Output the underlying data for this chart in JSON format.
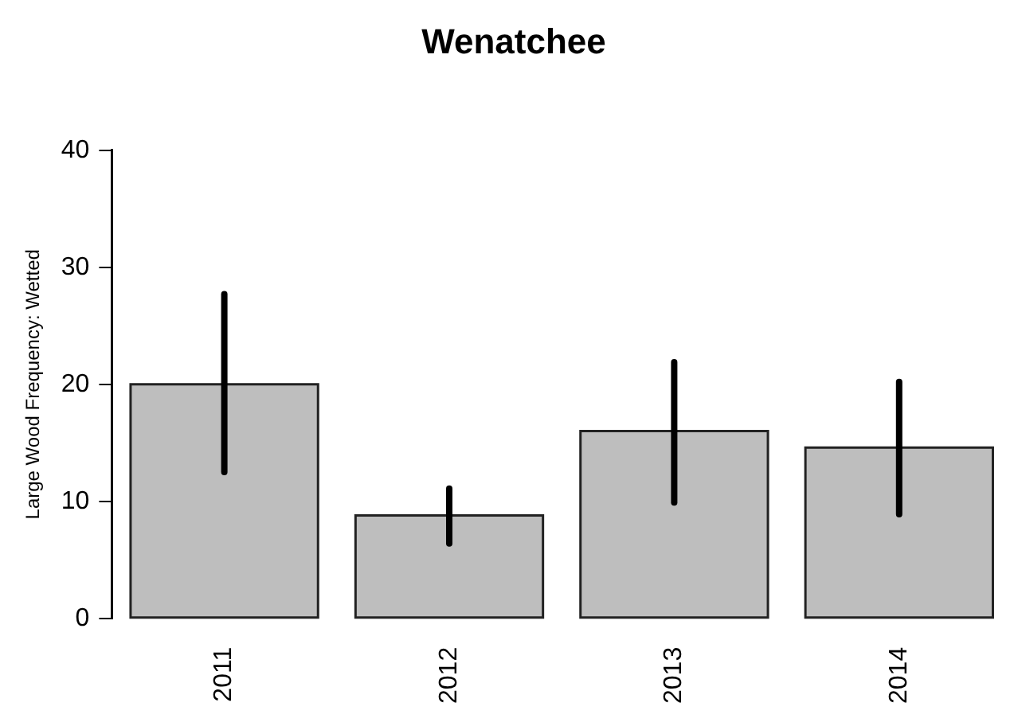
{
  "chart_data": {
    "type": "bar",
    "title": "Wenatchee",
    "ylabel": "Large Wood Frequency: Wetted",
    "categories": [
      "2011",
      "2012",
      "2013",
      "2014"
    ],
    "values": [
      20.0,
      8.8,
      16.0,
      14.6
    ],
    "errors": [
      [
        12.5,
        27.7
      ],
      [
        6.4,
        11.1
      ],
      [
        9.9,
        21.9
      ],
      [
        8.9,
        20.2
      ]
    ],
    "color": "#bebebe",
    "ylim": [
      0,
      40
    ],
    "yticks": [
      0,
      10,
      20,
      30,
      40
    ],
    "grid": false,
    "legend": false
  }
}
